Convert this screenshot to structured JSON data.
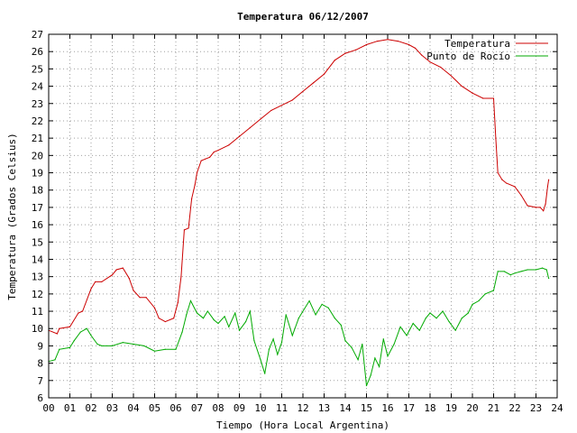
{
  "chart_data": {
    "type": "line",
    "title": "Temperatura 06/12/2007",
    "xlabel": "Tiempo (Hora Local Argentina)",
    "ylabel": "Temperatura (Grados Celsius)",
    "xlim": [
      0,
      24
    ],
    "ylim": [
      6,
      27
    ],
    "grid": true,
    "legend_position": "top-right",
    "x_ticks": [
      0,
      1,
      2,
      3,
      4,
      5,
      6,
      7,
      8,
      9,
      10,
      11,
      12,
      13,
      14,
      15,
      16,
      17,
      18,
      19,
      20,
      21,
      22,
      23,
      24
    ],
    "x_tick_labels": [
      "00",
      "01",
      "02",
      "03",
      "04",
      "05",
      "06",
      "07",
      "08",
      "09",
      "10",
      "11",
      "12",
      "13",
      "14",
      "15",
      "16",
      "17",
      "18",
      "19",
      "20",
      "21",
      "22",
      "23",
      "24"
    ],
    "y_ticks": [
      6,
      7,
      8,
      9,
      10,
      11,
      12,
      13,
      14,
      15,
      16,
      17,
      18,
      19,
      20,
      21,
      22,
      23,
      24,
      25,
      26,
      27
    ],
    "series": [
      {
        "name": "Temperatura",
        "color": "#cc0000",
        "x": [
          0,
          0.4,
          0.5,
          1.0,
          1.4,
          1.6,
          2.0,
          2.2,
          2.5,
          3.0,
          3.2,
          3.5,
          3.8,
          4.0,
          4.3,
          4.6,
          5.0,
          5.2,
          5.5,
          5.9,
          6.1,
          6.25,
          6.4,
          6.6,
          6.75,
          6.9,
          7.0,
          7.2,
          7.4,
          7.6,
          7.8,
          8.0,
          8.5,
          9.0,
          9.5,
          10.0,
          10.5,
          11.0,
          11.5,
          12.0,
          12.5,
          13.0,
          13.5,
          14.0,
          14.5,
          15.0,
          15.5,
          16.0,
          16.5,
          17.0,
          17.3,
          17.6,
          18.0,
          18.5,
          19.0,
          19.5,
          20.0,
          20.5,
          21.0,
          21.1,
          21.2,
          21.4,
          21.6,
          22.0,
          22.3,
          22.6,
          23.0,
          23.2,
          23.35,
          23.45,
          23.55,
          23.6
        ],
        "values": [
          9.9,
          9.7,
          10.0,
          10.1,
          10.9,
          11.0,
          12.3,
          12.7,
          12.7,
          13.1,
          13.4,
          13.5,
          12.9,
          12.2,
          11.8,
          11.8,
          11.2,
          10.6,
          10.4,
          10.6,
          11.5,
          13.0,
          15.7,
          15.8,
          17.5,
          18.3,
          19.0,
          19.7,
          19.8,
          19.9,
          20.2,
          20.3,
          20.6,
          21.1,
          21.6,
          22.1,
          22.6,
          22.9,
          23.2,
          23.7,
          24.2,
          24.7,
          25.5,
          25.9,
          26.1,
          26.4,
          26.6,
          26.7,
          26.6,
          26.4,
          26.2,
          25.8,
          25.4,
          25.1,
          24.6,
          24.0,
          23.6,
          23.3,
          23.3,
          21.0,
          19.0,
          18.6,
          18.4,
          18.2,
          17.7,
          17.1,
          17.0,
          17.0,
          16.8,
          17.2,
          18.2,
          18.6
        ]
      },
      {
        "name": "Punto de Rocío",
        "color": "#00aa00",
        "x": [
          0,
          0.3,
          0.5,
          1.0,
          1.2,
          1.5,
          1.8,
          2.0,
          2.3,
          2.5,
          3.0,
          3.5,
          4.0,
          4.5,
          5.0,
          5.5,
          6.0,
          6.3,
          6.5,
          6.7,
          7.0,
          7.3,
          7.5,
          7.8,
          8.0,
          8.3,
          8.5,
          8.8,
          9.0,
          9.3,
          9.5,
          9.7,
          10.0,
          10.2,
          10.4,
          10.6,
          10.8,
          11.0,
          11.2,
          11.5,
          11.8,
          12.0,
          12.3,
          12.6,
          12.9,
          13.2,
          13.5,
          13.8,
          14.0,
          14.3,
          14.6,
          14.8,
          15.0,
          15.2,
          15.4,
          15.6,
          15.8,
          16.0,
          16.3,
          16.6,
          16.9,
          17.2,
          17.5,
          17.8,
          18.0,
          18.3,
          18.6,
          18.9,
          19.2,
          19.5,
          19.8,
          20.0,
          20.3,
          20.6,
          21.0,
          21.2,
          21.5,
          21.8,
          22.0,
          22.3,
          22.6,
          23.0,
          23.3,
          23.5,
          23.6
        ],
        "values": [
          8.1,
          8.2,
          8.8,
          8.9,
          9.3,
          9.8,
          10.0,
          9.6,
          9.1,
          9.0,
          9.0,
          9.2,
          9.1,
          9.0,
          8.7,
          8.8,
          8.8,
          9.8,
          10.8,
          11.6,
          10.9,
          10.6,
          11.0,
          10.5,
          10.3,
          10.7,
          10.1,
          10.9,
          9.9,
          10.4,
          11.0,
          9.3,
          8.2,
          7.4,
          8.8,
          9.4,
          8.5,
          9.2,
          10.8,
          9.6,
          10.6,
          11.0,
          11.6,
          10.8,
          11.4,
          11.2,
          10.6,
          10.2,
          9.3,
          8.9,
          8.2,
          9.1,
          6.7,
          7.3,
          8.3,
          7.8,
          9.4,
          8.4,
          9.1,
          10.1,
          9.6,
          10.3,
          9.9,
          10.6,
          10.9,
          10.6,
          11.0,
          10.4,
          9.9,
          10.6,
          10.9,
          11.4,
          11.6,
          12.0,
          12.2,
          13.3,
          13.3,
          13.1,
          13.2,
          13.3,
          13.4,
          13.4,
          13.5,
          13.4,
          12.9
        ]
      }
    ]
  }
}
